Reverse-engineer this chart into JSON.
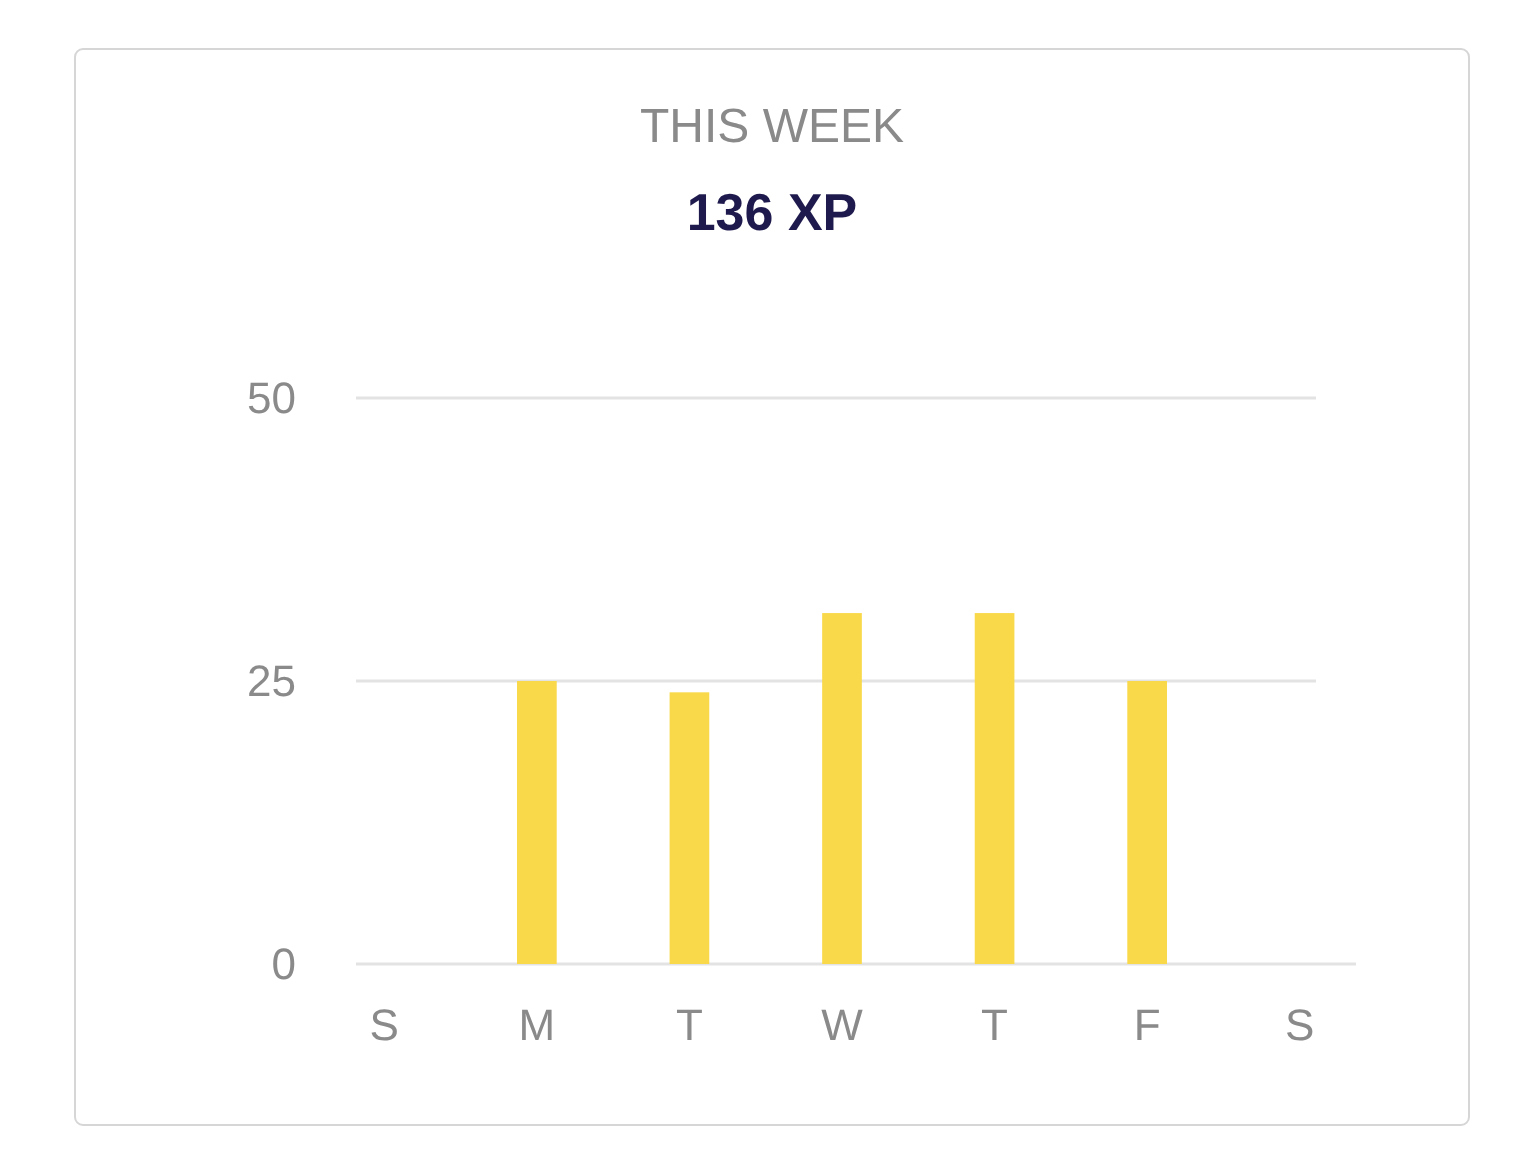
{
  "chart_data": {
    "type": "bar",
    "title": "THIS WEEK",
    "subtitle": "136 XP",
    "categories": [
      "S",
      "M",
      "T",
      "W",
      "T",
      "F",
      "S"
    ],
    "values": [
      null,
      25,
      24,
      31,
      31,
      25,
      null
    ],
    "color": "#f9d949",
    "ylim": [
      0,
      50
    ],
    "yticks": [
      0,
      25,
      50
    ],
    "grid": "y"
  }
}
